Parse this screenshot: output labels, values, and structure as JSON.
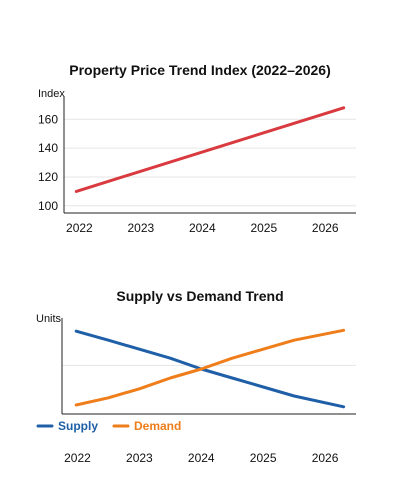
{
  "chart_data": [
    {
      "type": "line",
      "title": "Property Price Trend Index (2022–2026)",
      "ylabel": "Index",
      "xlabel": "",
      "x": [
        2022,
        2026
      ],
      "xticks": [
        "2022",
        "2023",
        "2024",
        "2025",
        "2026"
      ],
      "yticks": [
        "100",
        "120",
        "140",
        "160"
      ],
      "ylim": [
        95,
        172
      ],
      "xlim": [
        2021.75,
        2026.5
      ],
      "grid": true,
      "series": [
        {
          "values": [
            110,
            168
          ],
          "color": "#d93a3f"
        }
      ]
    },
    {
      "type": "line",
      "title": "Supply vs Demand Trend",
      "ylabel": "Units",
      "xlabel": "",
      "x": [
        2022,
        2022.5,
        2023,
        2023.5,
        2024,
        2024.5,
        2025,
        2025.5,
        2026
      ],
      "xticks": [
        "2022",
        "2023",
        "2024",
        "2025",
        "2026"
      ],
      "yticks": [],
      "ylim": [
        0,
        100
      ],
      "xlim": [
        2021.75,
        2026.5
      ],
      "grid": true,
      "legend_position": "bottom-left",
      "series": [
        {
          "name": "Supply",
          "color": "#1f5fa8",
          "values": [
            92,
            82,
            72,
            62,
            50,
            40,
            30,
            20,
            8
          ]
        },
        {
          "name": "Demand",
          "color": "#ee7d1a",
          "values": [
            10,
            18,
            28,
            40,
            50,
            62,
            72,
            82,
            93
          ]
        }
      ]
    }
  ]
}
